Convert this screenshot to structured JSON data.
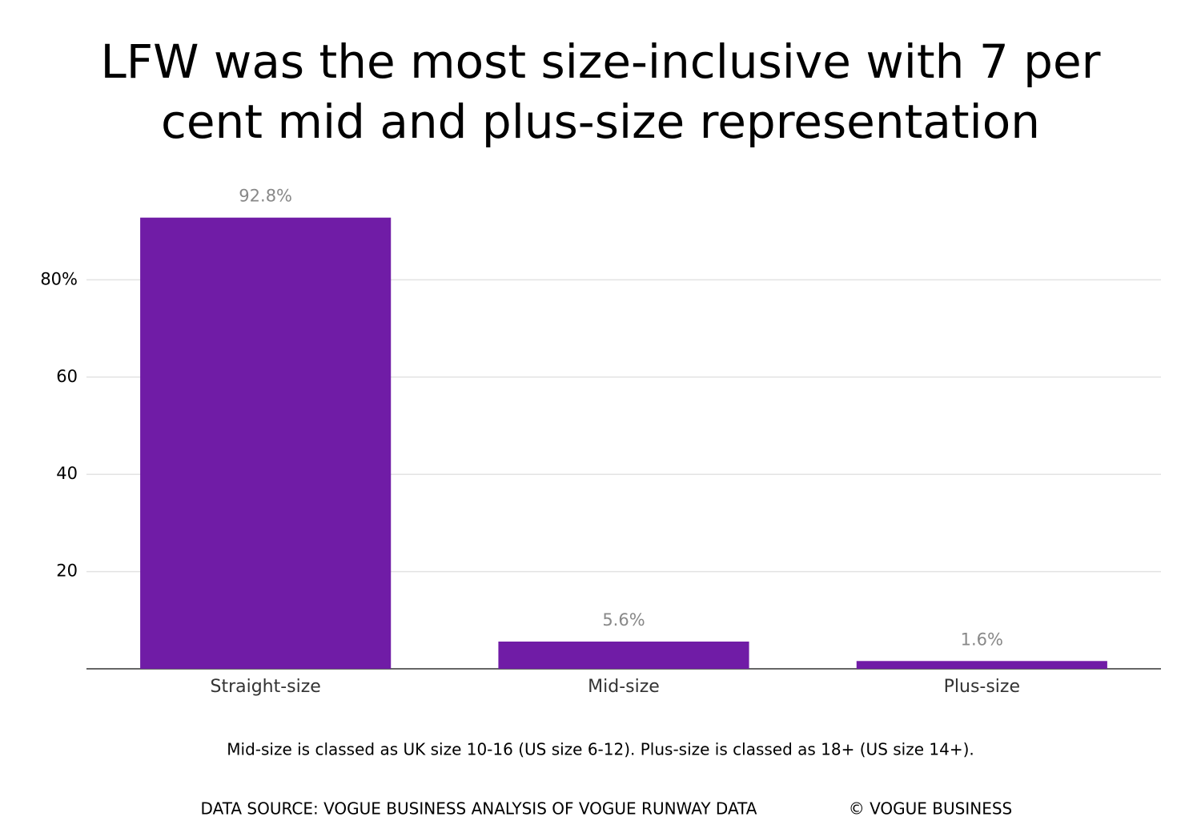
{
  "chart_data": {
    "type": "bar",
    "title": "LFW was the most size-inclusive with 7 per cent mid and plus-size representation",
    "categories": [
      "Straight-size",
      "Mid-size",
      "Plus-size"
    ],
    "values": [
      92.8,
      5.6,
      1.6
    ],
    "value_labels": [
      "92.8%",
      "5.6%",
      "1.6%"
    ],
    "color": "#701ca6",
    "ylim": [
      0,
      100
    ],
    "yticks": [
      20,
      40,
      60,
      {
        "value": 80,
        "label": "80%"
      }
    ],
    "grid": true,
    "footnote": "Mid-size is classed as UK size 10-16 (US size 6-12). Plus-size is classed as 18+ (US size 14+).",
    "source": "DATA SOURCE: VOGUE BUSINESS ANALYSIS OF VOGUE RUNWAY DATA",
    "copyright": "© VOGUE BUSINESS"
  }
}
